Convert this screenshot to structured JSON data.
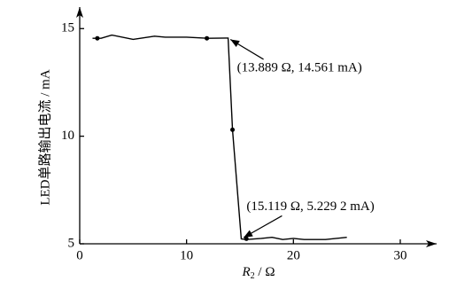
{
  "chart_data": {
    "type": "line",
    "ylabel": "LED单路输出电流 / mA",
    "xlabel": {
      "symbol": "R",
      "subscript": "2",
      "unit": " / Ω"
    },
    "xlim": [
      0,
      33.4
    ],
    "ylim": [
      5,
      16
    ],
    "xticks": [
      0,
      10,
      20,
      30
    ],
    "yticks": [
      5,
      10,
      15
    ],
    "series": [
      {
        "color": "#000000",
        "x": [
          1.2,
          2,
          3,
          5,
          7,
          8,
          10,
          12,
          13.889,
          14.3,
          15.119,
          15.6,
          17,
          18,
          19,
          20,
          21,
          23,
          25
        ],
        "values": [
          14.55,
          14.55,
          14.7,
          14.5,
          14.65,
          14.6,
          14.6,
          14.55,
          14.561,
          10.3,
          5.229,
          5.2,
          5.25,
          5.3,
          5.2,
          5.25,
          5.2,
          5.2,
          5.3
        ]
      }
    ],
    "markers": {
      "x": [
        1.65,
        11.9,
        14.3,
        15.6
      ],
      "values": [
        14.55,
        14.55,
        10.3,
        5.23
      ]
    },
    "annotations": [
      {
        "text": "(13.889 Ω, 14.561 mA)",
        "x": 13.889,
        "y": 14.561
      },
      {
        "text": "(15.119 Ω, 5.229 2 mA)",
        "x": 15.119,
        "y": 5.229
      }
    ]
  }
}
